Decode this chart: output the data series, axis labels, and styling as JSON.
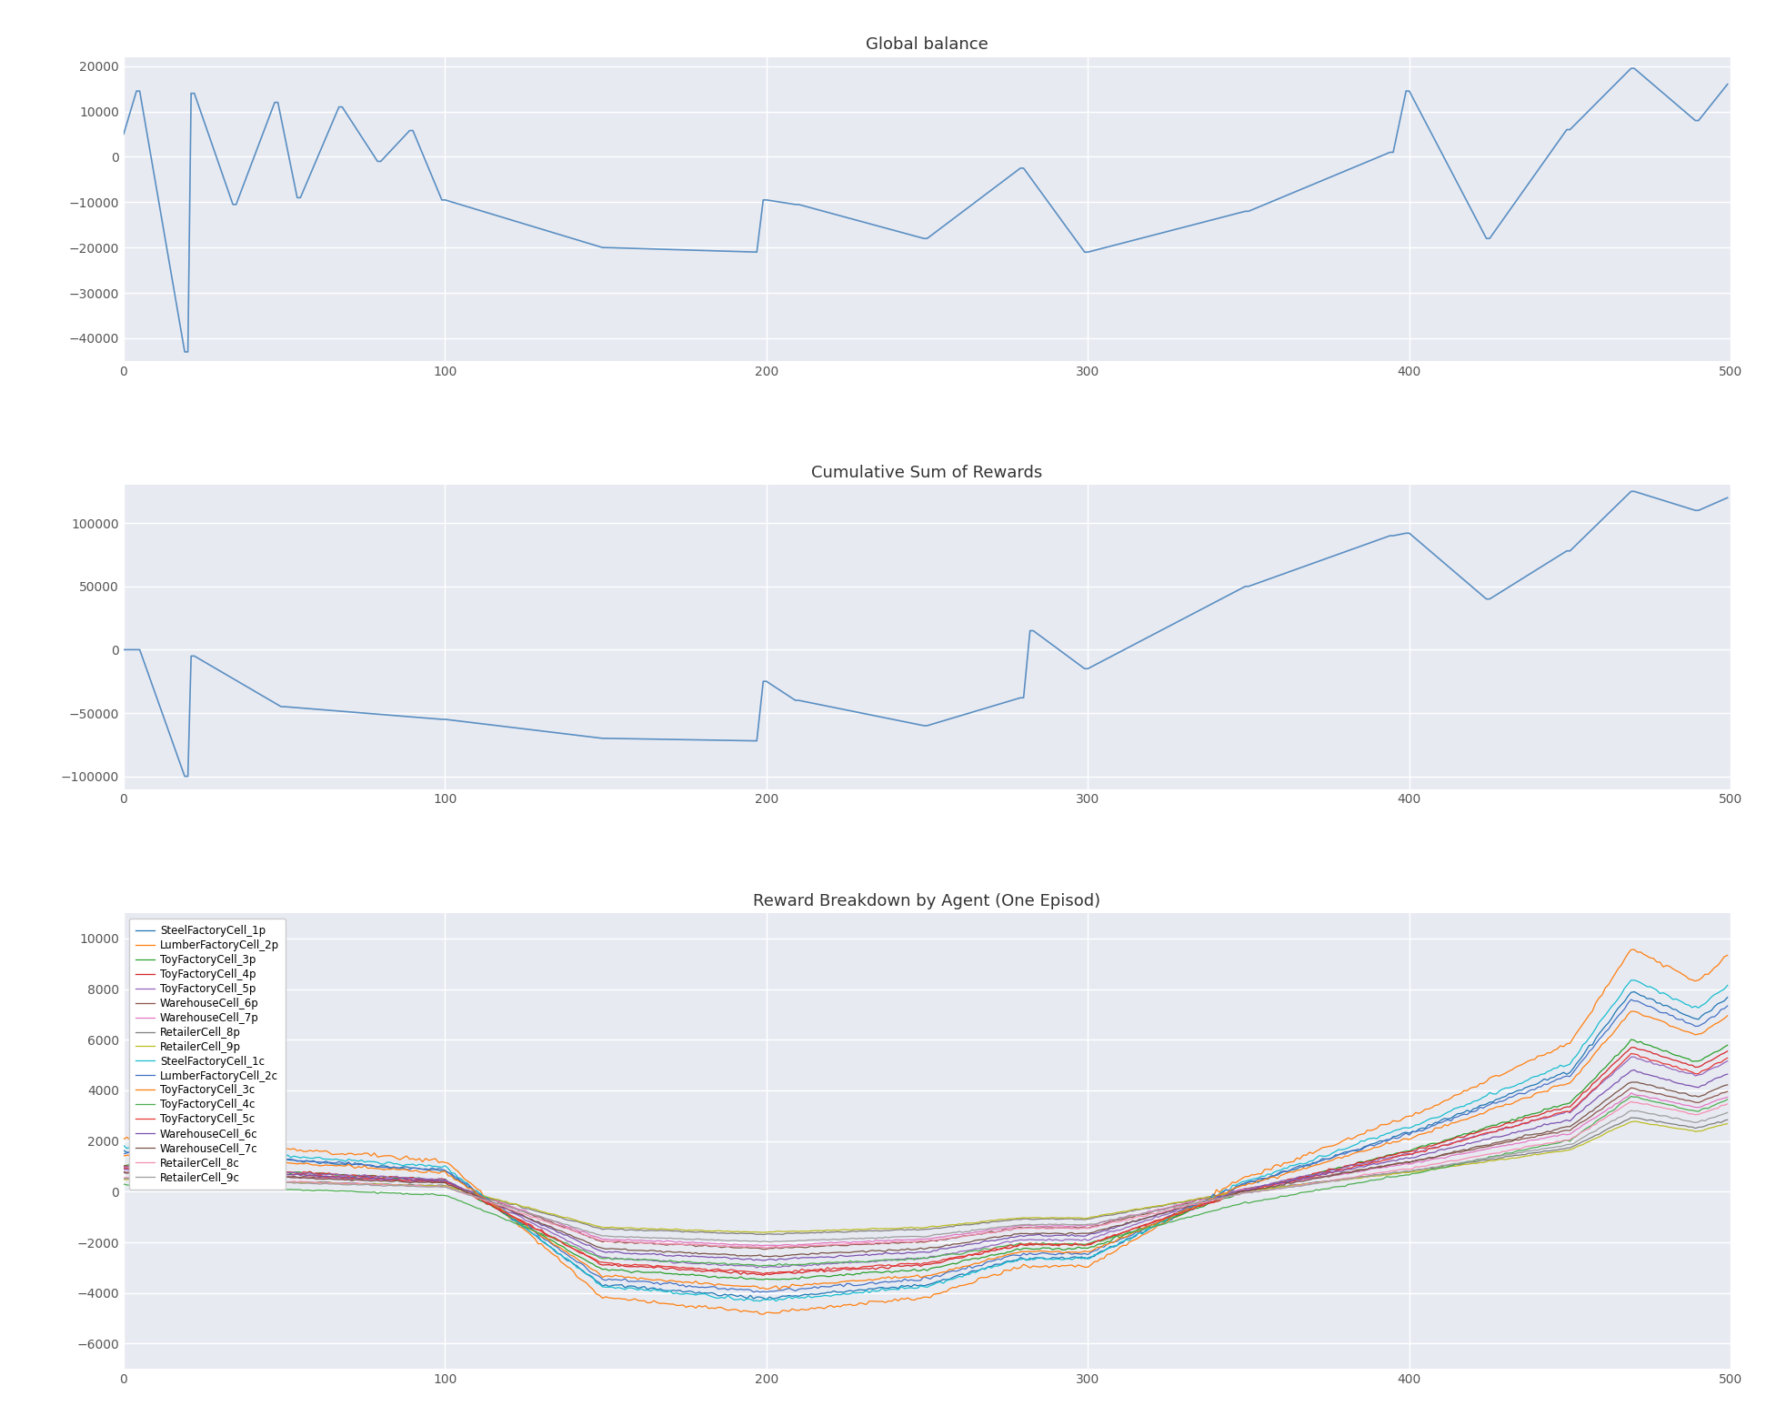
{
  "title1": "Global balance",
  "title2": "Cumulative Sum of Rewards",
  "title3": "Reward Breakdown by Agent (One Episod)",
  "bg_color": "#e8eaf2",
  "line_color_blue": "#5a8fc2",
  "xlim": [
    0,
    500
  ],
  "yticks1": [
    20000,
    10000,
    0,
    -10000,
    -20000,
    -30000,
    -40000
  ],
  "yticks2": [
    100000,
    50000,
    0,
    -50000,
    -100000
  ],
  "yticks3": [
    10000,
    8000,
    6000,
    4000,
    2000,
    0,
    -2000,
    -4000,
    -6000
  ],
  "ylim1": [
    -45000,
    22000
  ],
  "ylim2": [
    -110000,
    130000
  ],
  "ylim3": [
    -7000,
    11000
  ],
  "agents": [
    {
      "label": "SteelFactoryCell_1p",
      "color": "#1f77b4"
    },
    {
      "label": "LumberFactoryCell_2p",
      "color": "#ff7f0e"
    },
    {
      "label": "ToyFactoryCell_3p",
      "color": "#2ca02c"
    },
    {
      "label": "ToyFactoryCell_4p",
      "color": "#d62728"
    },
    {
      "label": "ToyFactoryCell_5p",
      "color": "#9467bd"
    },
    {
      "label": "WarehouseCell_6p",
      "color": "#8c564b"
    },
    {
      "label": "WarehouseCell_7p",
      "color": "#e377c2"
    },
    {
      "label": "RetailerCell_8p",
      "color": "#7f7f7f"
    },
    {
      "label": "RetailerCell_9p",
      "color": "#bcbd22"
    },
    {
      "label": "SteelFactoryCell_1c",
      "color": "#17becf"
    },
    {
      "label": "LumberFactoryCell_2c",
      "color": "#4472c4"
    },
    {
      "label": "ToyFactoryCell_3c",
      "color": "#ff7f0e"
    },
    {
      "label": "ToyFactoryCell_4c",
      "color": "#4caf50"
    },
    {
      "label": "ToyFactoryCell_5c",
      "color": "#e53935"
    },
    {
      "label": "WarehouseCell_6c",
      "color": "#7b52ae"
    },
    {
      "label": "WarehouseCell_7c",
      "color": "#795548"
    },
    {
      "label": "RetailerCell_8c",
      "color": "#f48fb1"
    },
    {
      "label": "RetailerCell_9c",
      "color": "#9e9e9e"
    }
  ]
}
